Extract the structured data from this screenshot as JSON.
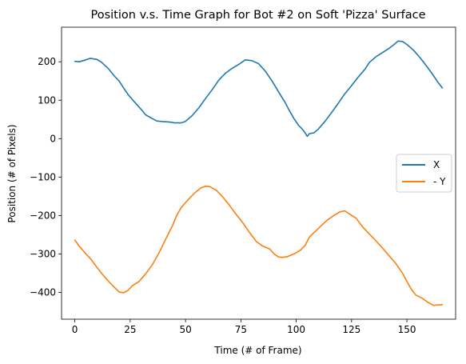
{
  "chart_data": {
    "type": "line",
    "title": "Position v.s. Time Graph for Bot #2 on Soft 'Pizza' Surface",
    "xlabel": "Time (# of Frame)",
    "ylabel": "Position (# of Pixels)",
    "xlim": [
      -6,
      172
    ],
    "ylim": [
      -470,
      290
    ],
    "xticks": [
      0,
      25,
      50,
      75,
      100,
      125,
      150
    ],
    "yticks": [
      -400,
      -300,
      -200,
      -100,
      0,
      100,
      200
    ],
    "grid": false,
    "legend": {
      "placement": "center-right",
      "entries": [
        "X",
        "- Y"
      ]
    },
    "series": [
      {
        "name": "X",
        "color": "#1f77b4",
        "points": [
          [
            0,
            201
          ],
          [
            2,
            200
          ],
          [
            5,
            205
          ],
          [
            7,
            209
          ],
          [
            10,
            206
          ],
          [
            12,
            199
          ],
          [
            15,
            183
          ],
          [
            18,
            162
          ],
          [
            20,
            150
          ],
          [
            22,
            132
          ],
          [
            24,
            115
          ],
          [
            27,
            95
          ],
          [
            30,
            76
          ],
          [
            32,
            62
          ],
          [
            35,
            52
          ],
          [
            37,
            46
          ],
          [
            40,
            44
          ],
          [
            43,
            43
          ],
          [
            45,
            41
          ],
          [
            48,
            41
          ],
          [
            50,
            45
          ],
          [
            53,
            60
          ],
          [
            56,
            80
          ],
          [
            59,
            104
          ],
          [
            62,
            127
          ],
          [
            65,
            152
          ],
          [
            68,
            170
          ],
          [
            71,
            183
          ],
          [
            74,
            193
          ],
          [
            77,
            205
          ],
          [
            80,
            203
          ],
          [
            83,
            195
          ],
          [
            86,
            176
          ],
          [
            89,
            151
          ],
          [
            92,
            122
          ],
          [
            95,
            94
          ],
          [
            97,
            72
          ],
          [
            99,
            52
          ],
          [
            101,
            35
          ],
          [
            103,
            23
          ],
          [
            104,
            15
          ],
          [
            105,
            6
          ],
          [
            106,
            13
          ],
          [
            108,
            15
          ],
          [
            110,
            25
          ],
          [
            113,
            45
          ],
          [
            116,
            68
          ],
          [
            119,
            92
          ],
          [
            122,
            117
          ],
          [
            125,
            138
          ],
          [
            128,
            160
          ],
          [
            131,
            180
          ],
          [
            133,
            198
          ],
          [
            136,
            213
          ],
          [
            139,
            224
          ],
          [
            142,
            235
          ],
          [
            144,
            244
          ],
          [
            146,
            254
          ],
          [
            148,
            253
          ],
          [
            150,
            245
          ],
          [
            153,
            230
          ],
          [
            156,
            210
          ],
          [
            159,
            188
          ],
          [
            162,
            164
          ],
          [
            164,
            147
          ],
          [
            166,
            132
          ]
        ]
      },
      {
        "name": "- Y",
        "color": "#ff7f0e",
        "points": [
          [
            0,
            -264
          ],
          [
            2,
            -280
          ],
          [
            5,
            -300
          ],
          [
            7,
            -312
          ],
          [
            10,
            -335
          ],
          [
            12,
            -350
          ],
          [
            15,
            -370
          ],
          [
            18,
            -388
          ],
          [
            20,
            -399
          ],
          [
            22,
            -401
          ],
          [
            24,
            -395
          ],
          [
            26,
            -383
          ],
          [
            29,
            -372
          ],
          [
            32,
            -352
          ],
          [
            35,
            -328
          ],
          [
            38,
            -298
          ],
          [
            41,
            -262
          ],
          [
            44,
            -228
          ],
          [
            46,
            -200
          ],
          [
            48,
            -180
          ],
          [
            51,
            -160
          ],
          [
            54,
            -142
          ],
          [
            57,
            -128
          ],
          [
            59,
            -124
          ],
          [
            61,
            -125
          ],
          [
            64,
            -135
          ],
          [
            67,
            -153
          ],
          [
            70,
            -175
          ],
          [
            73,
            -198
          ],
          [
            76,
            -220
          ],
          [
            79,
            -245
          ],
          [
            82,
            -268
          ],
          [
            85,
            -280
          ],
          [
            88,
            -287
          ],
          [
            90,
            -300
          ],
          [
            92,
            -308
          ],
          [
            94,
            -309
          ],
          [
            96,
            -307
          ],
          [
            99,
            -300
          ],
          [
            102,
            -290
          ],
          [
            104,
            -278
          ],
          [
            106,
            -256
          ],
          [
            108,
            -245
          ],
          [
            111,
            -228
          ],
          [
            114,
            -212
          ],
          [
            117,
            -200
          ],
          [
            120,
            -190
          ],
          [
            122,
            -188
          ],
          [
            124,
            -196
          ],
          [
            127,
            -207
          ],
          [
            130,
            -230
          ],
          [
            133,
            -248
          ],
          [
            136,
            -266
          ],
          [
            139,
            -285
          ],
          [
            142,
            -305
          ],
          [
            145,
            -325
          ],
          [
            148,
            -350
          ],
          [
            150,
            -372
          ],
          [
            152,
            -392
          ],
          [
            154,
            -407
          ],
          [
            157,
            -416
          ],
          [
            160,
            -428
          ],
          [
            162,
            -434
          ],
          [
            164,
            -433
          ],
          [
            166,
            -432
          ]
        ]
      }
    ]
  }
}
